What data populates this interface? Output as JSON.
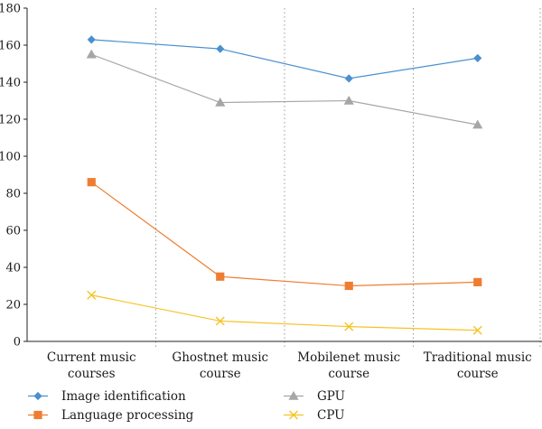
{
  "chart_data": {
    "type": "line",
    "categories": [
      [
        "Current music",
        "courses"
      ],
      [
        "Ghostnet music",
        "course"
      ],
      [
        "Mobilenet music",
        "course"
      ],
      [
        "Traditional music",
        "course"
      ]
    ],
    "ylim": [
      0,
      180
    ],
    "yticks": [
      0,
      20,
      40,
      60,
      80,
      100,
      120,
      140,
      160,
      180
    ],
    "grid": "vertical dotted separators between categories",
    "legend_position": "bottom",
    "series": [
      {
        "name": "Image identification",
        "values": [
          163,
          158,
          142,
          153
        ],
        "color": "#4a90cf",
        "marker": "diamond"
      },
      {
        "name": "GPU",
        "values": [
          155,
          129,
          130,
          117
        ],
        "color": "#a6a6a6",
        "marker": "triangle"
      },
      {
        "name": "Language processing",
        "values": [
          86,
          35,
          30,
          32
        ],
        "color": "#ef7d31",
        "marker": "square"
      },
      {
        "name": "CPU",
        "values": [
          25,
          11,
          8,
          6
        ],
        "color": "#f5c324",
        "marker": "x"
      }
    ]
  }
}
